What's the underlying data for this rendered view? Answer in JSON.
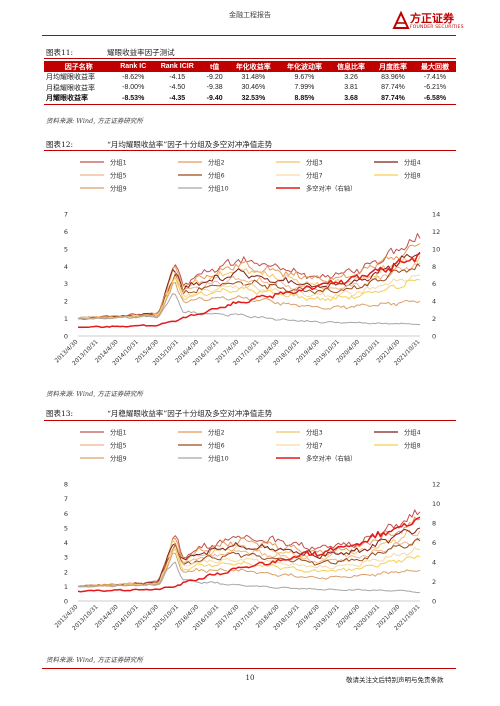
{
  "header": {
    "report_type": "金融工程报告",
    "logo_cn": "方正证券",
    "logo_en": "FOUNDER SECURITIES",
    "brand_color": "#c00000"
  },
  "table_figure": {
    "label": "图表11:",
    "title": "耀眼收益率因子测试",
    "columns": [
      "因子名称",
      "Rank IC",
      "Rank ICIR",
      "t值",
      "年化收益率",
      "年化波动率",
      "信息比率",
      "月度胜率",
      "最大回撤"
    ],
    "rows": [
      {
        "cells": [
          "月均耀眼收益率",
          "-8.62%",
          "-4.15",
          "-9.20",
          "31.48%",
          "9.67%",
          "3.26",
          "83.96%",
          "-7.41%"
        ],
        "bold": false
      },
      {
        "cells": [
          "月稳耀眼收益率",
          "-8.00%",
          "-4.50",
          "-9.38",
          "30.46%",
          "7.99%",
          "3.81",
          "87.74%",
          "-6.21%"
        ],
        "bold": false
      },
      {
        "cells": [
          "月耀眼收益率",
          "-8.53%",
          "-4.35",
          "-9.40",
          "32.53%",
          "8.85%",
          "3.68",
          "87.74%",
          "-6.58%"
        ],
        "bold": true
      }
    ],
    "source": "资料来源: Wind, 方正证券研究所"
  },
  "figure12": {
    "label": "图表12:",
    "title": "“月均耀眼收益率”因子十分组及多空对冲净值走势",
    "source": "资料来源: Wind, 方正证券研究所"
  },
  "figure13": {
    "label": "图表13:",
    "title": "“月稳耀眼收益率”因子十分组及多空对冲净值走势",
    "source": "资料来源: Wind, 方正证券研究所"
  },
  "chart_data": [
    {
      "type": "line",
      "left_ylim": [
        0,
        7
      ],
      "left_ticks": [
        "0",
        "1",
        "2",
        "3",
        "4",
        "5",
        "6",
        "7"
      ],
      "right_ylim": [
        0,
        14
      ],
      "right_ticks": [
        "0",
        "2",
        "4",
        "6",
        "8",
        "10",
        "12",
        "14"
      ],
      "x_tick_labels": [
        "2013/4/30",
        "2013/10/31",
        "2014/4/30",
        "2014/10/31",
        "2015/4/30",
        "2015/10/31",
        "2016/4/30",
        "2016/10/31",
        "2017/4/30",
        "2017/10/31",
        "2018/4/30",
        "2018/10/31",
        "2019/4/30",
        "2019/10/31",
        "2020/4/30",
        "2020/10/31",
        "2021/4/30",
        "2021/10/31"
      ],
      "x_anchor_idx": [
        0,
        2,
        4,
        4.8,
        5.2,
        6,
        8,
        10,
        12,
        14,
        16,
        17,
        18
      ],
      "legend": [
        "分组1",
        "分组2",
        "分组3",
        "分组4",
        "分组5",
        "分组6",
        "分组7",
        "分组8",
        "分组9",
        "分组10",
        "多空对冲（右轴）"
      ],
      "colors": [
        "#c0504d",
        "#e59a5a",
        "#f4c26b",
        "#7f1d1d",
        "#f1b58a",
        "#9a4a1a",
        "#f6d9a8",
        "#f5cf55",
        "#d9a06b",
        "#a6a6a6",
        "#e31a1c"
      ],
      "series": [
        {
          "name": "分组1",
          "axis": "left",
          "anchors": [
            1,
            1.15,
            1.3,
            4.2,
            2.9,
            3.5,
            4.4,
            3.9,
            3.4,
            3.8,
            5.0,
            5.6,
            6.0
          ]
        },
        {
          "name": "分组2",
          "axis": "left",
          "anchors": [
            1,
            1.14,
            1.28,
            4.1,
            2.8,
            3.3,
            4.1,
            3.7,
            3.2,
            3.6,
            4.8,
            5.3,
            5.7
          ]
        },
        {
          "name": "分组3",
          "axis": "left",
          "anchors": [
            1,
            1.12,
            1.25,
            3.9,
            2.7,
            3.1,
            3.8,
            3.4,
            2.9,
            3.2,
            4.2,
            4.6,
            4.9
          ]
        },
        {
          "name": "分组4",
          "axis": "left",
          "anchors": [
            1,
            1.12,
            1.26,
            4.0,
            2.7,
            3.0,
            3.6,
            3.2,
            2.8,
            3.1,
            4.3,
            4.8,
            5.2
          ]
        },
        {
          "name": "分组5",
          "axis": "left",
          "anchors": [
            1,
            1.1,
            1.22,
            3.7,
            2.5,
            2.8,
            3.3,
            3.0,
            2.6,
            2.9,
            3.8,
            4.2,
            4.5
          ]
        },
        {
          "name": "分组6",
          "axis": "left",
          "anchors": [
            1,
            1.1,
            1.22,
            3.6,
            2.4,
            2.7,
            3.1,
            2.8,
            2.5,
            2.8,
            3.7,
            4.0,
            4.3
          ]
        },
        {
          "name": "分组7",
          "axis": "left",
          "anchors": [
            1,
            1.08,
            1.2,
            3.4,
            2.3,
            2.5,
            2.9,
            2.6,
            2.3,
            2.5,
            3.2,
            3.5,
            3.7
          ]
        },
        {
          "name": "分组8",
          "axis": "left",
          "anchors": [
            1,
            1.08,
            1.18,
            3.3,
            2.2,
            2.4,
            2.7,
            2.4,
            2.1,
            2.3,
            2.9,
            3.2,
            3.4
          ]
        },
        {
          "name": "分组9",
          "axis": "left",
          "anchors": [
            1,
            1.06,
            1.15,
            3.1,
            2.0,
            2.1,
            2.2,
            1.9,
            1.6,
            1.7,
            1.9,
            2.0,
            2.1
          ]
        },
        {
          "name": "分组10",
          "axis": "left",
          "anchors": [
            1,
            1.05,
            1.1,
            2.5,
            1.4,
            1.3,
            1.2,
            0.95,
            0.8,
            0.75,
            0.7,
            0.65,
            0.6
          ]
        },
        {
          "name": "多空对冲（右轴）",
          "axis": "right",
          "anchors": [
            1,
            1.1,
            1.25,
            1.7,
            2.0,
            2.6,
            3.8,
            4.8,
            5.8,
            6.7,
            8.3,
            9.5,
            10.8
          ]
        }
      ]
    },
    {
      "type": "line",
      "left_ylim": [
        0,
        8
      ],
      "left_ticks": [
        "0",
        "1",
        "2",
        "3",
        "4",
        "5",
        "6",
        "7",
        "8"
      ],
      "right_ylim": [
        0,
        12
      ],
      "right_ticks": [
        "0",
        "2",
        "4",
        "6",
        "8",
        "10",
        "12"
      ],
      "x_tick_labels": [
        "2013/4/30",
        "2013/10/31",
        "2014/4/30",
        "2014/10/31",
        "2015/4/30",
        "2015/10/31",
        "2016/4/30",
        "2016/10/31",
        "2017/4/30",
        "2017/10/31",
        "2018/4/30",
        "2018/10/31",
        "2019/4/30",
        "2019/10/31",
        "2020/4/30",
        "2020/10/31",
        "2021/4/30",
        "2021/10/31"
      ],
      "x_anchor_idx": [
        0,
        2,
        4,
        4.8,
        5.2,
        6,
        8,
        10,
        12,
        14,
        16,
        17,
        18
      ],
      "legend": [
        "分组1",
        "分组2",
        "分组3",
        "分组4",
        "分组5",
        "分组6",
        "分组7",
        "分组8",
        "分组9",
        "分组10",
        "多空对冲（右轴）"
      ],
      "colors": [
        "#c0504d",
        "#e59a5a",
        "#f4c26b",
        "#7f1d1d",
        "#f1b58a",
        "#9a4a1a",
        "#f6d9a8",
        "#f5cf55",
        "#d9a06b",
        "#a6a6a6",
        "#e31a1c"
      ],
      "series": [
        {
          "name": "分组1",
          "axis": "left",
          "anchors": [
            1,
            1.15,
            1.3,
            4.6,
            3.0,
            3.6,
            4.4,
            4.1,
            3.6,
            4.0,
            5.3,
            6.1,
            6.6
          ]
        },
        {
          "name": "分组2",
          "axis": "left",
          "anchors": [
            1,
            1.14,
            1.28,
            4.4,
            2.9,
            3.4,
            4.1,
            3.8,
            3.3,
            3.7,
            4.9,
            5.6,
            6.1
          ]
        },
        {
          "name": "分组3",
          "axis": "left",
          "anchors": [
            1,
            1.12,
            1.25,
            4.2,
            2.7,
            3.1,
            3.7,
            3.4,
            3.0,
            3.3,
            4.3,
            4.8,
            5.2
          ]
        },
        {
          "name": "分组4",
          "axis": "left",
          "anchors": [
            1,
            1.12,
            1.26,
            4.3,
            2.8,
            3.2,
            3.8,
            3.5,
            3.1,
            3.4,
            4.5,
            5.0,
            5.5
          ]
        },
        {
          "name": "分组5",
          "axis": "left",
          "anchors": [
            1,
            1.1,
            1.22,
            4.0,
            2.6,
            2.9,
            3.4,
            3.1,
            2.7,
            3.0,
            3.9,
            4.3,
            4.6
          ]
        },
        {
          "name": "分组6",
          "axis": "left",
          "anchors": [
            1,
            1.1,
            1.22,
            3.9,
            2.5,
            2.8,
            3.2,
            2.9,
            2.6,
            2.8,
            3.7,
            4.1,
            4.4
          ]
        },
        {
          "name": "分组7",
          "axis": "left",
          "anchors": [
            1,
            1.08,
            1.2,
            3.7,
            2.4,
            2.6,
            2.9,
            2.6,
            2.3,
            2.5,
            3.2,
            3.5,
            3.7
          ]
        },
        {
          "name": "分组8",
          "axis": "left",
          "anchors": [
            1,
            1.08,
            1.18,
            3.5,
            2.2,
            2.4,
            2.6,
            2.3,
            2.0,
            2.2,
            2.8,
            3.0,
            3.2
          ]
        },
        {
          "name": "分组9",
          "axis": "left",
          "anchors": [
            1,
            1.06,
            1.15,
            3.3,
            2.0,
            2.1,
            2.1,
            1.8,
            1.6,
            1.7,
            2.0,
            2.1,
            2.1
          ]
        },
        {
          "name": "分组10",
          "axis": "left",
          "anchors": [
            1,
            1.05,
            1.1,
            2.8,
            1.5,
            1.3,
            1.1,
            0.9,
            0.8,
            0.75,
            0.7,
            0.6,
            0.55
          ]
        },
        {
          "name": "多空对冲（右轴）",
          "axis": "right",
          "anchors": [
            1,
            1.1,
            1.2,
            1.5,
            1.8,
            2.3,
            3.3,
            4.2,
            5.0,
            5.9,
            7.5,
            8.6,
            10.6
          ]
        }
      ]
    }
  ],
  "footer": {
    "page": "10",
    "notice": "敬请关注文后特别声明与免责条款"
  }
}
